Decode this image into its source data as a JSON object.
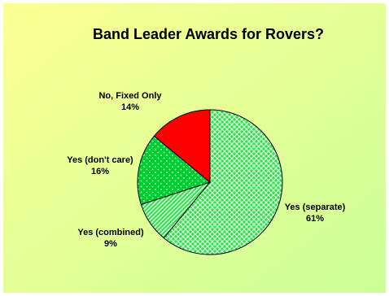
{
  "chart_data": {
    "type": "pie",
    "title": "Band Leader Awards for Rovers?",
    "slices": [
      {
        "label": "Yes (separate)",
        "value": 61,
        "value_label": "61%",
        "color": "#2ee24a",
        "pattern": "crosshatch"
      },
      {
        "label": "Yes (combined)",
        "value": 9,
        "value_label": "9%",
        "color": "#2ee24a",
        "pattern": "diagonal-stripes"
      },
      {
        "label": "Yes (don't care)",
        "value": 16,
        "value_label": "16%",
        "color": "#00cc33",
        "pattern": "dots"
      },
      {
        "label": "No, Fixed Only",
        "value": 14,
        "value_label": "14%",
        "color": "#ff0000",
        "pattern": "solid"
      }
    ],
    "start_position": "12 o'clock",
    "direction": "clockwise",
    "legend": "none",
    "background_colors": [
      "#fbff93",
      "#ccff99"
    ]
  }
}
